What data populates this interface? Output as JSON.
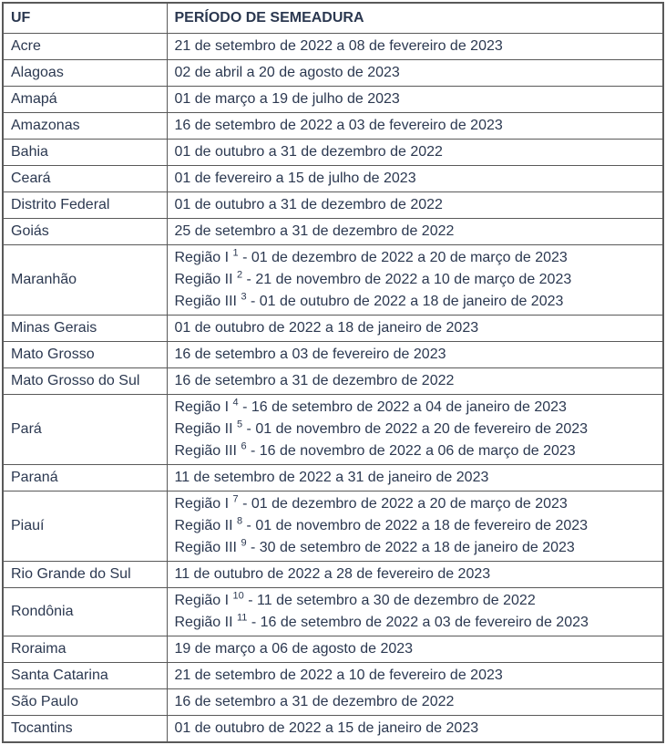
{
  "colors": {
    "text": "#2b3850",
    "border": "#595959"
  },
  "table": {
    "columns": [
      "UF",
      "PERÍODO DE SEMEADURA"
    ],
    "rows": [
      {
        "uf": "Acre",
        "periods": [
          {
            "text": "21 de setembro de 2022 a 08 de fevereiro de 2023"
          }
        ]
      },
      {
        "uf": "Alagoas",
        "periods": [
          {
            "text": "02 de abril a 20 de agosto de 2023"
          }
        ]
      },
      {
        "uf": "Amapá",
        "periods": [
          {
            "text": "01 de março a 19 de julho de 2023"
          }
        ]
      },
      {
        "uf": "Amazonas",
        "periods": [
          {
            "text": "16 de setembro de 2022 a 03 de fevereiro de 2023"
          }
        ]
      },
      {
        "uf": "Bahia",
        "periods": [
          {
            "text": "01 de outubro a 31 de dezembro de 2022"
          }
        ]
      },
      {
        "uf": "Ceará",
        "periods": [
          {
            "text": "01 de fevereiro a 15 de julho de 2023"
          }
        ]
      },
      {
        "uf": "Distrito Federal",
        "periods": [
          {
            "text": "01 de outubro a 31 de dezembro de 2022"
          }
        ]
      },
      {
        "uf": "Goiás",
        "periods": [
          {
            "text": "25 de setembro a 31 de dezembro de 2022"
          }
        ]
      },
      {
        "uf": "Maranhão",
        "periods": [
          {
            "prefix": "Região I ",
            "sup": "1",
            "text": " - 01 de dezembro de 2022 a 20 de março de 2023"
          },
          {
            "prefix": "Região II ",
            "sup": "2",
            "text": " - 21 de novembro de 2022 a 10 de março de 2023"
          },
          {
            "prefix": "Região III ",
            "sup": "3",
            "text": " - 01 de outubro de 2022 a 18 de janeiro de 2023"
          }
        ]
      },
      {
        "uf": "Minas Gerais",
        "periods": [
          {
            "text": "01 de outubro de 2022 a 18 de janeiro de 2023"
          }
        ]
      },
      {
        "uf": "Mato Grosso",
        "periods": [
          {
            "text": "16 de setembro a 03 de fevereiro de 2023"
          }
        ]
      },
      {
        "uf": "Mato Grosso do Sul",
        "periods": [
          {
            "text": "16 de setembro a 31 de dezembro de 2022"
          }
        ]
      },
      {
        "uf": "Pará",
        "periods": [
          {
            "prefix": "Região I ",
            "sup": "4",
            "text": " - 16 de setembro de 2022 a 04 de janeiro de 2023"
          },
          {
            "prefix": "Região II ",
            "sup": "5",
            "text": " - 01 de novembro de 2022 a 20 de fevereiro de 2023"
          },
          {
            "prefix": "Região III ",
            "sup": "6",
            "text": " - 16 de novembro de 2022 a 06 de março de 2023"
          }
        ]
      },
      {
        "uf": "Paraná",
        "periods": [
          {
            "text": "11 de setembro de 2022 a 31 de janeiro de 2023"
          }
        ]
      },
      {
        "uf": "Piauí",
        "periods": [
          {
            "prefix": "Região I ",
            "sup": "7",
            "text": " - 01 de dezembro de 2022 a 20 de março de 2023"
          },
          {
            "prefix": "Região II ",
            "sup": "8",
            "text": " - 01 de novembro de 2022 a 18 de fevereiro de 2023"
          },
          {
            "prefix": "Região III ",
            "sup": "9",
            "text": " - 30 de setembro de 2022 a 18 de janeiro de 2023"
          }
        ]
      },
      {
        "uf": "Rio Grande do Sul",
        "periods": [
          {
            "text": "11 de outubro de 2022 a 28 de fevereiro de 2023"
          }
        ]
      },
      {
        "uf": "Rondônia",
        "periods": [
          {
            "prefix": "Região I ",
            "sup": "10",
            "text": " - 11 de setembro a 30 de dezembro de 2022"
          },
          {
            "prefix": "Região II ",
            "sup": "11",
            "text": " - 16 de setembro de 2022 a 03 de fevereiro de 2023"
          }
        ]
      },
      {
        "uf": "Roraima",
        "periods": [
          {
            "text": "19 de março a 06 de agosto de 2023"
          }
        ]
      },
      {
        "uf": "Santa Catarina",
        "periods": [
          {
            "text": "21 de setembro de 2022 a 10 de fevereiro de 2023"
          }
        ]
      },
      {
        "uf": "São Paulo",
        "periods": [
          {
            "text": "16 de setembro a 31 de dezembro de 2022"
          }
        ]
      },
      {
        "uf": "Tocantins",
        "periods": [
          {
            "text": "01 de outubro de 2022 a 15 de janeiro de 2023"
          }
        ]
      }
    ]
  }
}
